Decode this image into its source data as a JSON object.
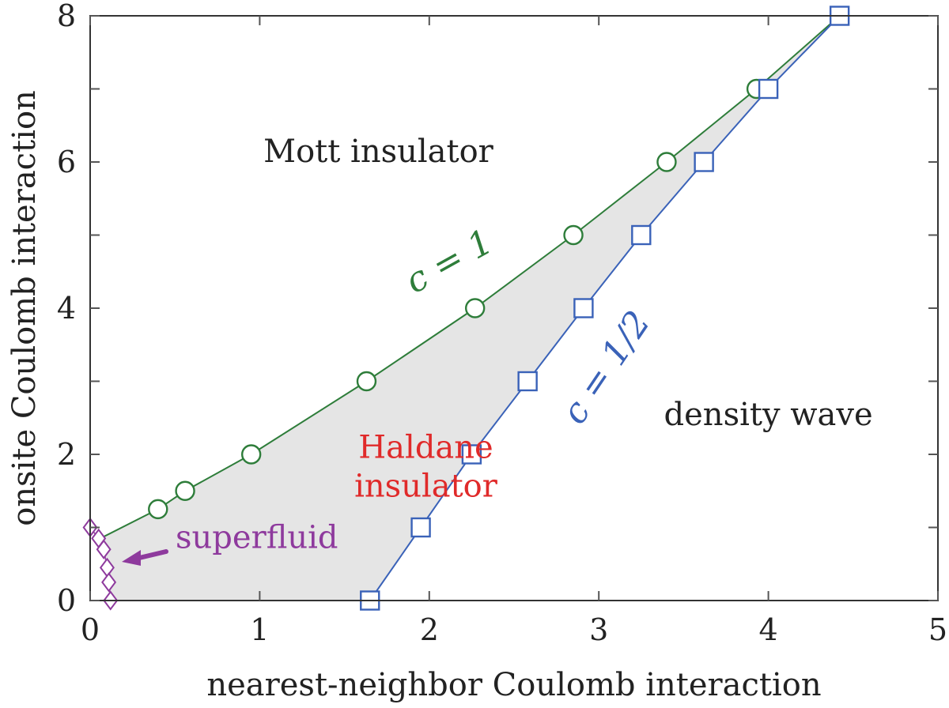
{
  "chart_data": {
    "type": "scatter",
    "title": "",
    "xlabel": "nearest-neighbor Coulomb interaction",
    "ylabel": "onsite Coulomb interaction",
    "xlim": [
      0,
      5
    ],
    "ylim": [
      0,
      8
    ],
    "xticks": [
      "0",
      "1",
      "2",
      "3",
      "4",
      "5"
    ],
    "yticks": [
      "0",
      "2",
      "4",
      "6",
      "8"
    ],
    "grid": false,
    "series": [
      {
        "name": "c = 1",
        "marker": "circle",
        "color": "#2e7d3a",
        "x": [
          0.06,
          0.4,
          0.56,
          0.95,
          1.63,
          2.27,
          2.85,
          3.4,
          3.93,
          4.42
        ],
        "y": [
          0.85,
          1.25,
          1.5,
          2.0,
          3.0,
          4.0,
          5.0,
          6.0,
          7.0,
          8.0
        ],
        "marker_points": [
          1,
          2,
          3,
          4,
          5,
          6,
          7,
          8
        ]
      },
      {
        "name": "c = 1/2",
        "marker": "square",
        "color": "#3a62b8",
        "x": [
          1.65,
          1.95,
          2.25,
          2.58,
          2.91,
          3.25,
          3.62,
          4.0,
          4.42
        ],
        "y": [
          0.0,
          1.0,
          2.0,
          3.0,
          4.0,
          5.0,
          6.0,
          7.0,
          8.0
        ]
      },
      {
        "name": "superfluid",
        "marker": "diamond",
        "color": "#8e3a9d",
        "x": [
          0.0,
          0.05,
          0.08,
          0.1,
          0.11,
          0.12
        ],
        "y": [
          1.0,
          0.85,
          0.7,
          0.45,
          0.25,
          0.0
        ]
      }
    ],
    "shaded_region": {
      "name": "Haldane insulator",
      "color": "#e5e5e5"
    },
    "annotations": [
      {
        "text": "Mott insulator",
        "x": 1.7,
        "y": 6.0,
        "color": "#222222"
      },
      {
        "text": "density wave",
        "x": 4.0,
        "y": 2.4,
        "color": "#222222"
      },
      {
        "text": "Haldane",
        "x": 1.98,
        "y": 1.95,
        "color": "#e02a2a"
      },
      {
        "text": "insulator",
        "x": 1.98,
        "y": 1.42,
        "color": "#e02a2a"
      },
      {
        "text": "superfluid",
        "x": 0.53,
        "y": 0.72,
        "color": "#8e3a9d"
      },
      {
        "text": "c = 1",
        "x": 2.15,
        "y": 4.5,
        "color": "#2e7d3a"
      },
      {
        "text": "c = 1/2",
        "x": 3.1,
        "y": 3.1,
        "color": "#3a62b8"
      }
    ]
  }
}
